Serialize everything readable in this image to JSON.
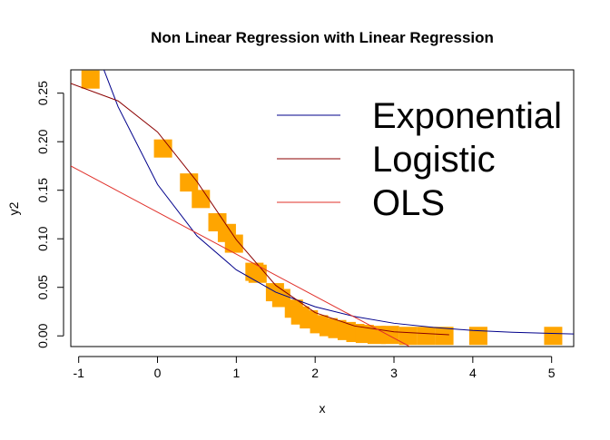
{
  "chart_data": {
    "type": "scatter",
    "title": "Non Linear Regression with Linear Regression",
    "x_label": "x",
    "y_label": "y2",
    "xlim": [
      -1.1,
      5.28
    ],
    "ylim": [
      -0.011,
      0.274
    ],
    "xticks": [
      -1,
      0,
      1,
      2,
      3,
      4,
      5
    ],
    "yticks": [
      {
        "value": 0,
        "label": "0.00"
      },
      0.05,
      {
        "value": 0.1,
        "label": "0.10"
      },
      0.15,
      {
        "value": 0.2,
        "label": "0.20"
      },
      0.25
    ],
    "points": {
      "color": "#ffa500",
      "x": [
        -0.85,
        0.07,
        0.4,
        0.55,
        0.76,
        0.88,
        0.97,
        1.23,
        1.27,
        1.49,
        1.57,
        1.73,
        1.81,
        1.92,
        2.05,
        2.17,
        2.28,
        2.4,
        2.51,
        2.63,
        2.78,
        2.95,
        3.18,
        3.41,
        3.64,
        4.07,
        5.02
      ],
      "values": [
        0.264,
        0.193,
        0.158,
        0.141,
        0.117,
        0.106,
        0.095,
        0.066,
        0.064,
        0.045,
        0.039,
        0.028,
        0.021,
        0.017,
        0.012,
        0.009,
        0.007,
        0.005,
        0.003,
        0.002,
        0.001,
        0.001,
        0,
        0,
        0,
        0,
        0
      ]
    },
    "series": [
      {
        "name": "Exponential",
        "color": "#00008b",
        "x": [
          -0.68,
          -0.5,
          0,
          0.5,
          1,
          1.5,
          2,
          2.5,
          3,
          3.5,
          4,
          4.5,
          5,
          5.28
        ],
        "values": [
          0.274,
          0.236,
          0.156,
          0.103,
          0.068,
          0.045,
          0.03,
          0.02,
          0.013,
          0.0087,
          0.0056,
          0.0037,
          0.0025,
          0.002
        ]
      },
      {
        "name": "Logistic",
        "color": "#8b0000",
        "x": [
          -1.1,
          -0.5,
          0,
          0.5,
          1,
          1.5,
          2,
          2.5,
          3,
          3.7
        ],
        "values": [
          0.26,
          0.242,
          0.21,
          0.159,
          0.099,
          0.052,
          0.024,
          0.0102,
          0.0042,
          0.0012
        ]
      },
      {
        "name": "OLS",
        "color": "#e0302a",
        "x": [
          -1.1,
          3.2
        ],
        "values": [
          0.175,
          -0.011
        ]
      }
    ]
  }
}
